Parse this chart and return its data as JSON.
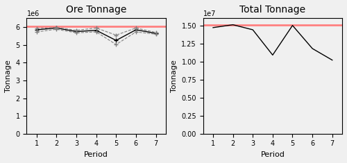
{
  "ore_tonnage": {
    "title": "Ore Tonnage",
    "xlabel": "Period",
    "ylabel": "Tonnage",
    "periods": [
      1,
      2,
      3,
      4,
      5,
      6,
      7
    ],
    "line_main": [
      5850000.0,
      5950000.0,
      5750000.0,
      5820000.0,
      5250000.0,
      5850000.0,
      5650000.0
    ],
    "line_upper": [
      5920000.0,
      5980000.0,
      5820000.0,
      5950000.0,
      5550000.0,
      5950000.0,
      5700000.0
    ],
    "line_lower": [
      5730000.0,
      5880000.0,
      5680000.0,
      5730000.0,
      5020000.0,
      5730000.0,
      5600000.0
    ],
    "hline_value": 6050000.0,
    "hline_color": "#ff8080",
    "ylim": [
      0,
      6500000.0
    ],
    "yticks": [
      0,
      1000000.0,
      2000000.0,
      3000000.0,
      4000000.0,
      5000000.0,
      6000000.0
    ],
    "ytick_labels": [
      "0",
      "1",
      "2",
      "3",
      "4",
      "5",
      "6"
    ],
    "scale_label": "1e6"
  },
  "total_tonnage": {
    "title": "Total Tonnage",
    "xlabel": "Period",
    "ylabel": "Tonnage",
    "periods": [
      1,
      2,
      3,
      4,
      5,
      6,
      7
    ],
    "line_main": [
      14700000.0,
      15100000.0,
      14400000.0,
      10900000.0,
      15000000.0,
      11800000.0,
      10200000.0
    ],
    "hline_value": 15100000.0,
    "hline_color": "#ff8080",
    "ylim": [
      0,
      16000000.0
    ],
    "yticks": [
      0,
      2500000.0,
      5000000.0,
      7500000.0,
      10000000.0,
      12500000.0,
      15000000.0
    ],
    "ytick_labels": [
      "0.00",
      "0.25",
      "0.50",
      "0.75",
      "1.00",
      "1.25",
      "1.50"
    ],
    "scale_label": "1e7"
  },
  "bg_color": "#f0f0f0",
  "main_line_color": "black",
  "dashed_line_color": "gray"
}
